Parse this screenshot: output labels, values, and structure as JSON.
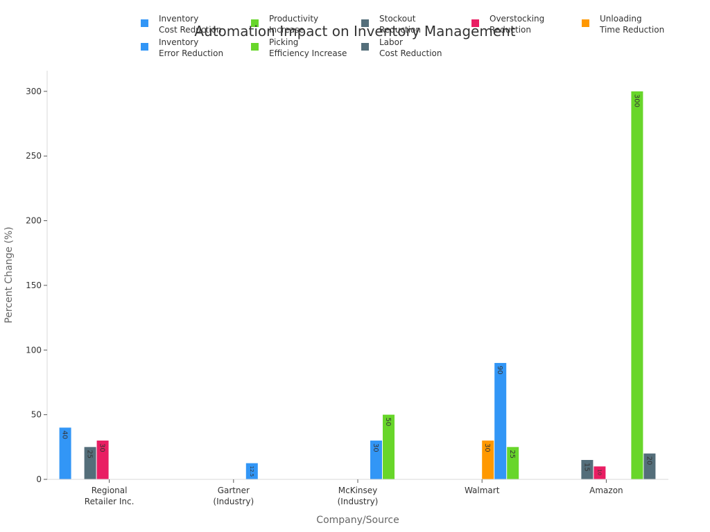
{
  "chart_data": {
    "type": "bar",
    "title": "Automation Impact on Inventory Management",
    "xlabel": "Company/Source",
    "ylabel": "Percent Change (%)",
    "ylim": [
      0,
      316
    ],
    "yticks": [
      0,
      50,
      100,
      150,
      200,
      250,
      300
    ],
    "legend_position": "top",
    "categories": [
      [
        "Regional",
        "Retailer Inc."
      ],
      [
        "Gartner",
        "(Industry)"
      ],
      [
        "McKinsey",
        "(Industry)"
      ],
      [
        "Walmart"
      ],
      [
        "Amazon"
      ]
    ],
    "series": [
      {
        "name": [
          "Inventory",
          "Cost Reduction"
        ],
        "color": "#3296f6",
        "values": [
          40,
          null,
          null,
          null,
          null
        ]
      },
      {
        "name": [
          "Productivity",
          "Increase"
        ],
        "color": "#68d62a",
        "values": [
          null,
          null,
          null,
          null,
          null
        ]
      },
      {
        "name": [
          "Stockout",
          "Reduction"
        ],
        "color": "#546e7a",
        "values": [
          25,
          null,
          null,
          null,
          15
        ]
      },
      {
        "name": [
          "Overstocking",
          "Reduction"
        ],
        "color": "#e91e63",
        "values": [
          30,
          null,
          null,
          null,
          10
        ]
      },
      {
        "name": [
          "Unloading",
          "Time Reduction"
        ],
        "color": "#ff9800",
        "values": [
          null,
          null,
          null,
          30,
          null
        ]
      },
      {
        "name": [
          "Inventory",
          "Error Reduction"
        ],
        "color": "#3296f6",
        "values": [
          null,
          12.5,
          30,
          90,
          null
        ]
      },
      {
        "name": [
          "Picking",
          "Efficiency Increase"
        ],
        "color": "#68d62a",
        "values": [
          null,
          null,
          50,
          25,
          300
        ]
      },
      {
        "name": [
          "Labor",
          "Cost Reduction"
        ],
        "color": "#546e7a",
        "values": [
          null,
          null,
          null,
          null,
          20
        ]
      }
    ],
    "bar_labels": [
      {
        "category": 0,
        "series": 0,
        "text": "40"
      },
      {
        "category": 0,
        "series": 2,
        "text": "25"
      },
      {
        "category": 0,
        "series": 3,
        "text": "30"
      },
      {
        "category": 1,
        "series": 5,
        "text": "12.5"
      },
      {
        "category": 2,
        "series": 5,
        "text": "30"
      },
      {
        "category": 2,
        "series": 6,
        "text": "50"
      },
      {
        "category": 3,
        "series": 6,
        "text": "25"
      },
      {
        "category": 3,
        "series": 4,
        "text": "30"
      },
      {
        "category": 3,
        "series": 5,
        "text": "90"
      },
      {
        "category": 4,
        "series": 2,
        "text": "15"
      },
      {
        "category": 4,
        "series": 3,
        "text": "10"
      },
      {
        "category": 4,
        "series": 6,
        "text": "300"
      },
      {
        "category": 4,
        "series": 7,
        "text": "20"
      }
    ]
  }
}
